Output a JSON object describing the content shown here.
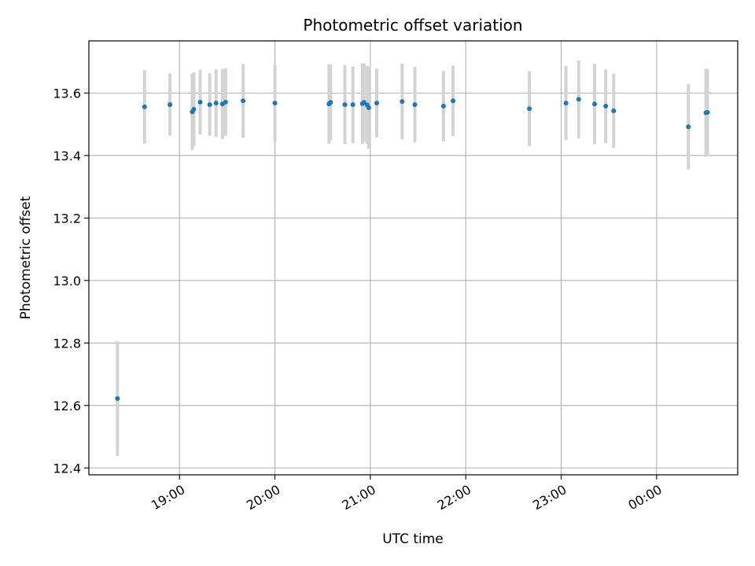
{
  "chart_data": {
    "type": "scatter",
    "title": "Photometric offset variation",
    "xlabel": "UTC time",
    "ylabel": "Photometric offset",
    "grid": true,
    "x_unit": "time of day (UTC)",
    "xlim": [
      "18:03",
      "00:51"
    ],
    "ylim": [
      12.378,
      13.767
    ],
    "x_ticks": [
      "19:00",
      "20:00",
      "21:00",
      "22:00",
      "23:00",
      "00:00"
    ],
    "y_ticks": [
      "12.4",
      "12.6",
      "12.8",
      "13.0",
      "13.2",
      "13.4",
      "13.6"
    ],
    "colors": {
      "points": "#1f77b4",
      "error_bars": "#d3d3d3",
      "grid": "#b0b0b0"
    },
    "series": [
      {
        "points": [
          {
            "x": "18:21",
            "y": 12.622,
            "yerr": 0.183
          },
          {
            "x": "18:38",
            "y": 13.556,
            "yerr": 0.118
          },
          {
            "x": "18:54",
            "y": 13.563,
            "yerr": 0.1
          },
          {
            "x": "19:08",
            "y": 13.54,
            "yerr": 0.122
          },
          {
            "x": "19:09",
            "y": 13.548,
            "yerr": 0.118
          },
          {
            "x": "19:13",
            "y": 13.571,
            "yerr": 0.104
          },
          {
            "x": "19:19",
            "y": 13.563,
            "yerr": 0.1
          },
          {
            "x": "19:23",
            "y": 13.568,
            "yerr": 0.108
          },
          {
            "x": "19:27",
            "y": 13.565,
            "yerr": 0.112
          },
          {
            "x": "19:29",
            "y": 13.571,
            "yerr": 0.108
          },
          {
            "x": "19:40",
            "y": 13.575,
            "yerr": 0.118
          },
          {
            "x": "20:00",
            "y": 13.568,
            "yerr": 0.123
          },
          {
            "x": "20:34",
            "y": 13.565,
            "yerr": 0.127
          },
          {
            "x": "20:35",
            "y": 13.57,
            "yerr": 0.121
          },
          {
            "x": "20:44",
            "y": 13.563,
            "yerr": 0.127
          },
          {
            "x": "20:49",
            "y": 13.563,
            "yerr": 0.123
          },
          {
            "x": "20:55",
            "y": 13.566,
            "yerr": 0.129
          },
          {
            "x": "20:56",
            "y": 13.57,
            "yerr": 0.125
          },
          {
            "x": "20:58",
            "y": 13.562,
            "yerr": 0.125
          },
          {
            "x": "20:59",
            "y": 13.553,
            "yerr": 0.131
          },
          {
            "x": "21:04",
            "y": 13.568,
            "yerr": 0.11
          },
          {
            "x": "21:20",
            "y": 13.573,
            "yerr": 0.121
          },
          {
            "x": "21:28",
            "y": 13.563,
            "yerr": 0.121
          },
          {
            "x": "21:46",
            "y": 13.558,
            "yerr": 0.113
          },
          {
            "x": "21:52",
            "y": 13.575,
            "yerr": 0.113
          },
          {
            "x": "22:40",
            "y": 13.55,
            "yerr": 0.12
          },
          {
            "x": "23:03",
            "y": 13.568,
            "yerr": 0.119
          },
          {
            "x": "23:11",
            "y": 13.58,
            "yerr": 0.125
          },
          {
            "x": "23:21",
            "y": 13.565,
            "yerr": 0.129
          },
          {
            "x": "23:28",
            "y": 13.558,
            "yerr": 0.118
          },
          {
            "x": "23:33",
            "y": 13.543,
            "yerr": 0.119
          },
          {
            "x": "00:20",
            "y": 13.492,
            "yerr": 0.137
          },
          {
            "x": "00:31",
            "y": 13.537,
            "yerr": 0.141
          },
          {
            "x": "00:32",
            "y": 13.538,
            "yerr": 0.139
          }
        ]
      }
    ]
  }
}
